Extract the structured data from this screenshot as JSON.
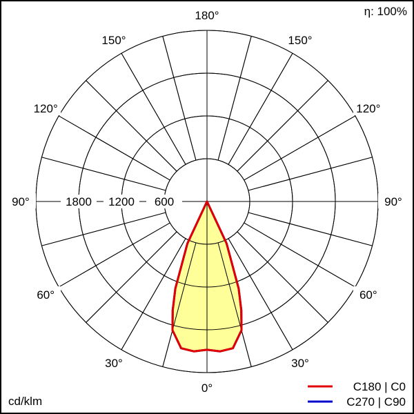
{
  "chart_data": {
    "type": "polar",
    "unit_label": "cd/klm",
    "efficiency_label": "η: 100%",
    "radial_ticks": [
      600,
      1200,
      1800
    ],
    "radial_max": 2400,
    "angle_tick_labels": {
      "bottom": "0°",
      "top": "180°",
      "left": [
        "30°",
        "60°",
        "90°",
        "120°",
        "150°"
      ],
      "right": [
        "30°",
        "60°",
        "90°",
        "120°",
        "150°"
      ]
    },
    "angle_grid_step_deg": 15,
    "fill_color": "#ffff99",
    "series": [
      {
        "name": "C270 | C90",
        "color": "#0000cc",
        "angles": [
          0,
          5,
          10,
          15,
          17.5,
          20,
          25,
          30,
          90
        ],
        "values": [
          2080,
          2110,
          2090,
          1870,
          1600,
          1300,
          650,
          0,
          0
        ]
      },
      {
        "name": "C180 | C0",
        "color": "#e00000",
        "angles": [
          0,
          5,
          10,
          15,
          17.5,
          20,
          25,
          30,
          90
        ],
        "values": [
          2080,
          2110,
          2090,
          1870,
          1600,
          1300,
          650,
          0,
          0
        ]
      }
    ]
  }
}
